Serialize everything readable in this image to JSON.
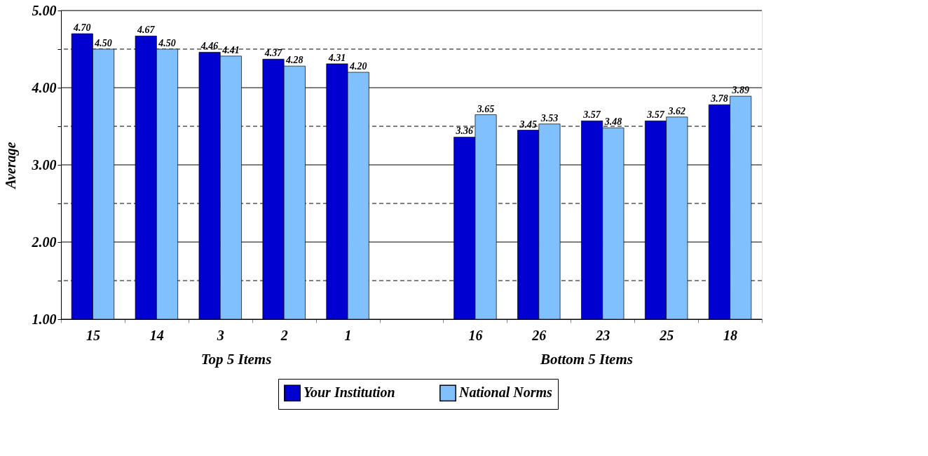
{
  "chart_data": {
    "type": "bar",
    "ylabel": "Average",
    "categories": [
      "15",
      "14",
      "3",
      "2",
      "1",
      null,
      "16",
      "26",
      "23",
      "25",
      "18"
    ],
    "series": [
      {
        "name": "Your Institution",
        "color": "#0000d0",
        "values": [
          4.7,
          4.67,
          4.46,
          4.37,
          4.31,
          null,
          3.36,
          3.45,
          3.57,
          3.57,
          3.78
        ],
        "value_labels": [
          "4.70",
          "4.67",
          "4.46",
          "4.37",
          "4.31",
          null,
          "3.36",
          "3.45",
          "3.57",
          "3.57",
          "3.78"
        ]
      },
      {
        "name": "National Norms",
        "color": "#80c0ff",
        "values": [
          4.5,
          4.5,
          4.41,
          4.28,
          4.2,
          null,
          3.65,
          3.53,
          3.48,
          3.62,
          3.89
        ],
        "value_labels": [
          "4.50",
          "4.50",
          "4.41",
          "4.28",
          "4.20",
          null,
          "3.65",
          "3.53",
          "3.48",
          "3.62",
          "3.89"
        ]
      }
    ],
    "ylim": [
      1,
      5
    ],
    "yticks": [
      {
        "value": 1,
        "label": "1.00"
      },
      {
        "value": 1.5,
        "label": null
      },
      {
        "value": 2,
        "label": "2.00"
      },
      {
        "value": 2.5,
        "label": null
      },
      {
        "value": 3,
        "label": "3.00"
      },
      {
        "value": 3.5,
        "label": null
      },
      {
        "value": 4,
        "label": "4.00"
      },
      {
        "value": 4.5,
        "label": null
      },
      {
        "value": 5,
        "label": "5.00"
      }
    ],
    "grid": "y",
    "legend": "bottom",
    "annotations": [
      "Top 5 Items",
      "Bottom 5 Items"
    ]
  }
}
